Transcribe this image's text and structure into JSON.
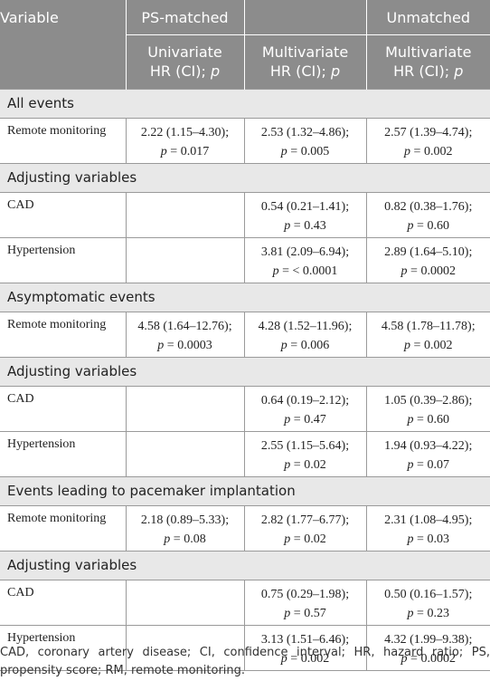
{
  "header": {
    "variable": "Variable",
    "ps_matched": "PS-matched",
    "unmatched": "Unmatched",
    "univariate": "Univariate",
    "multivariate": "Multivariate",
    "hr_ci": "HR (CI);",
    "p": "p"
  },
  "sections": [
    {
      "title": "All events",
      "rows": [
        {
          "label": "Remote monitoring",
          "ps_uni": [
            "2.22 (1.15–4.30);",
            "0.017"
          ],
          "ps_multi": [
            "2.53 (1.32–4.86);",
            "0.005"
          ],
          "unm_multi": [
            "2.57 (1.39–4.74);",
            "0.002"
          ]
        }
      ]
    },
    {
      "title": "Adjusting variables",
      "rows": [
        {
          "label": "CAD",
          "ps_uni": null,
          "ps_multi": [
            "0.54 (0.21–1.41);",
            "0.43"
          ],
          "unm_multi": [
            "0.82 (0.38–1.76);",
            "0.60"
          ]
        },
        {
          "label": "Hypertension",
          "ps_uni": null,
          "ps_multi": [
            "3.81 (2.09–6.94);",
            "< 0.0001"
          ],
          "unm_multi": [
            "2.89 (1.64–5.10);",
            "0.0002"
          ]
        }
      ]
    },
    {
      "title": "Asymptomatic events",
      "rows": [
        {
          "label": "Remote monitoring",
          "ps_uni": [
            "4.58 (1.64–12.76);",
            "0.0003"
          ],
          "ps_multi": [
            "4.28 (1.52–11.96);",
            "0.006"
          ],
          "unm_multi": [
            "4.58 (1.78–11.78);",
            "0.002"
          ]
        }
      ]
    },
    {
      "title": "Adjusting variables",
      "rows": [
        {
          "label": "CAD",
          "ps_uni": null,
          "ps_multi": [
            "0.64 (0.19–2.12);",
            "0.47"
          ],
          "unm_multi": [
            "1.05 (0.39–2.86);",
            "0.60"
          ]
        },
        {
          "label": "Hypertension",
          "ps_uni": null,
          "ps_multi": [
            "2.55 (1.15–5.64);",
            "0.02"
          ],
          "unm_multi": [
            "1.94 (0.93–4.22);",
            "0.07"
          ]
        }
      ]
    },
    {
      "title": "Events leading to pacemaker implantation",
      "rows": [
        {
          "label": "Remote monitoring",
          "ps_uni": [
            "2.18 (0.89–5.33);",
            "0.08"
          ],
          "ps_multi": [
            "2.82 (1.77–6.77);",
            "0.02"
          ],
          "unm_multi": [
            "2.31 (1.08–4.95);",
            "0.03"
          ]
        }
      ]
    },
    {
      "title": "Adjusting variables",
      "rows": [
        {
          "label": "CAD",
          "ps_uni": null,
          "ps_multi": [
            "0.75 (0.29–1.98);",
            "0.57"
          ],
          "unm_multi": [
            "0.50 (0.16–1.57);",
            "0.23"
          ]
        },
        {
          "label": "Hypertension",
          "ps_uni": null,
          "ps_multi": [
            "3.13 (1.51–6.46);",
            "0.002"
          ],
          "unm_multi": [
            "4.32 (1.99–9.38);",
            "0.0002"
          ]
        }
      ]
    }
  ],
  "footnote": "CAD, coronary artery disease; CI, confidence interval; HR, hazard ratio; PS, propensity score; RM, remote monitoring.",
  "colors": {
    "header_bg": "#8c8c8c",
    "section_bg": "#e8e8e8",
    "grid": "#9a9a9a"
  }
}
